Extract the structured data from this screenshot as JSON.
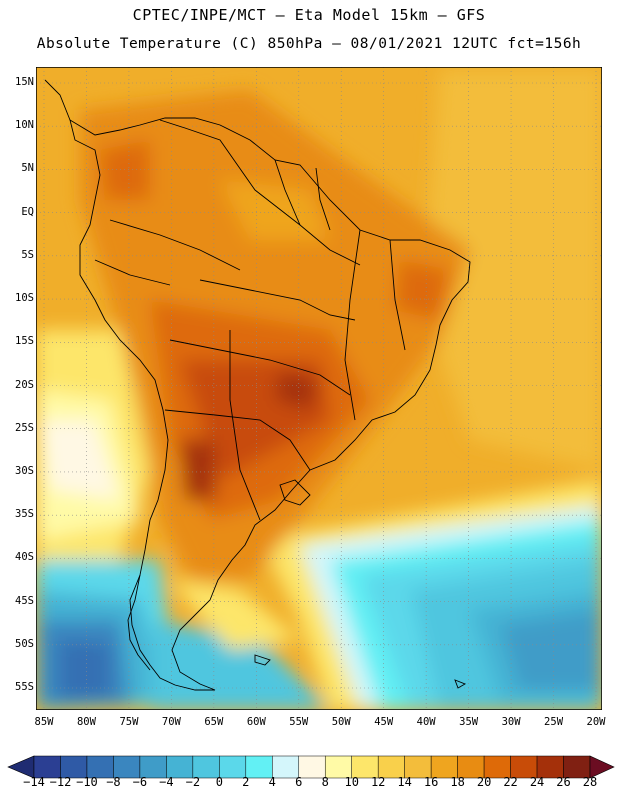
{
  "header": {
    "line1": "CPTEC/INPE/MCT –  Eta Model 15km – GFS",
    "line2": "Absolute Temperature (C) 850hPa – 08/01/2021 12UTC fct=156h"
  },
  "map": {
    "region": "South America",
    "lat_labels": [
      "15N",
      "10N",
      "5N",
      "EQ",
      "5S",
      "10S",
      "15S",
      "20S",
      "25S",
      "30S",
      "35S",
      "40S",
      "45S",
      "50S",
      "55S"
    ],
    "lat_values": [
      15,
      10,
      5,
      0,
      -5,
      -10,
      -15,
      -20,
      -25,
      -30,
      -35,
      -40,
      -45,
      -50,
      -55
    ],
    "lon_labels": [
      "85W",
      "80W",
      "75W",
      "70W",
      "65W",
      "60W",
      "55W",
      "50W",
      "45W",
      "40W",
      "35W",
      "30W",
      "25W",
      "20W"
    ],
    "lon_values": [
      -85,
      -80,
      -75,
      -70,
      -65,
      -60,
      -55,
      -50,
      -45,
      -40,
      -35,
      -30,
      -25,
      -20
    ]
  },
  "colorbar": {
    "labels": [
      "-14",
      "-12",
      "-10",
      "-8",
      "-6",
      "-4",
      "-2",
      "0",
      "2",
      "4",
      "6",
      "8",
      "10",
      "12",
      "14",
      "16",
      "18",
      "20",
      "22",
      "24",
      "26",
      "28"
    ],
    "colors": [
      "#2b3f93",
      "#2f5aa6",
      "#3470b3",
      "#3a86bf",
      "#3f9cc8",
      "#45b3d4",
      "#4fc6df",
      "#5bd8ea",
      "#62f0f4",
      "#d4f6fb",
      "#fff8e4",
      "#fffaa6",
      "#fde66a",
      "#f9d04b",
      "#f3bd3b",
      "#efa51f",
      "#e88c12",
      "#de6a08",
      "#c84c08",
      "#a4300a",
      "#802012"
    ],
    "under_color": "#1f2c72",
    "over_color": "#6b0d22"
  }
}
